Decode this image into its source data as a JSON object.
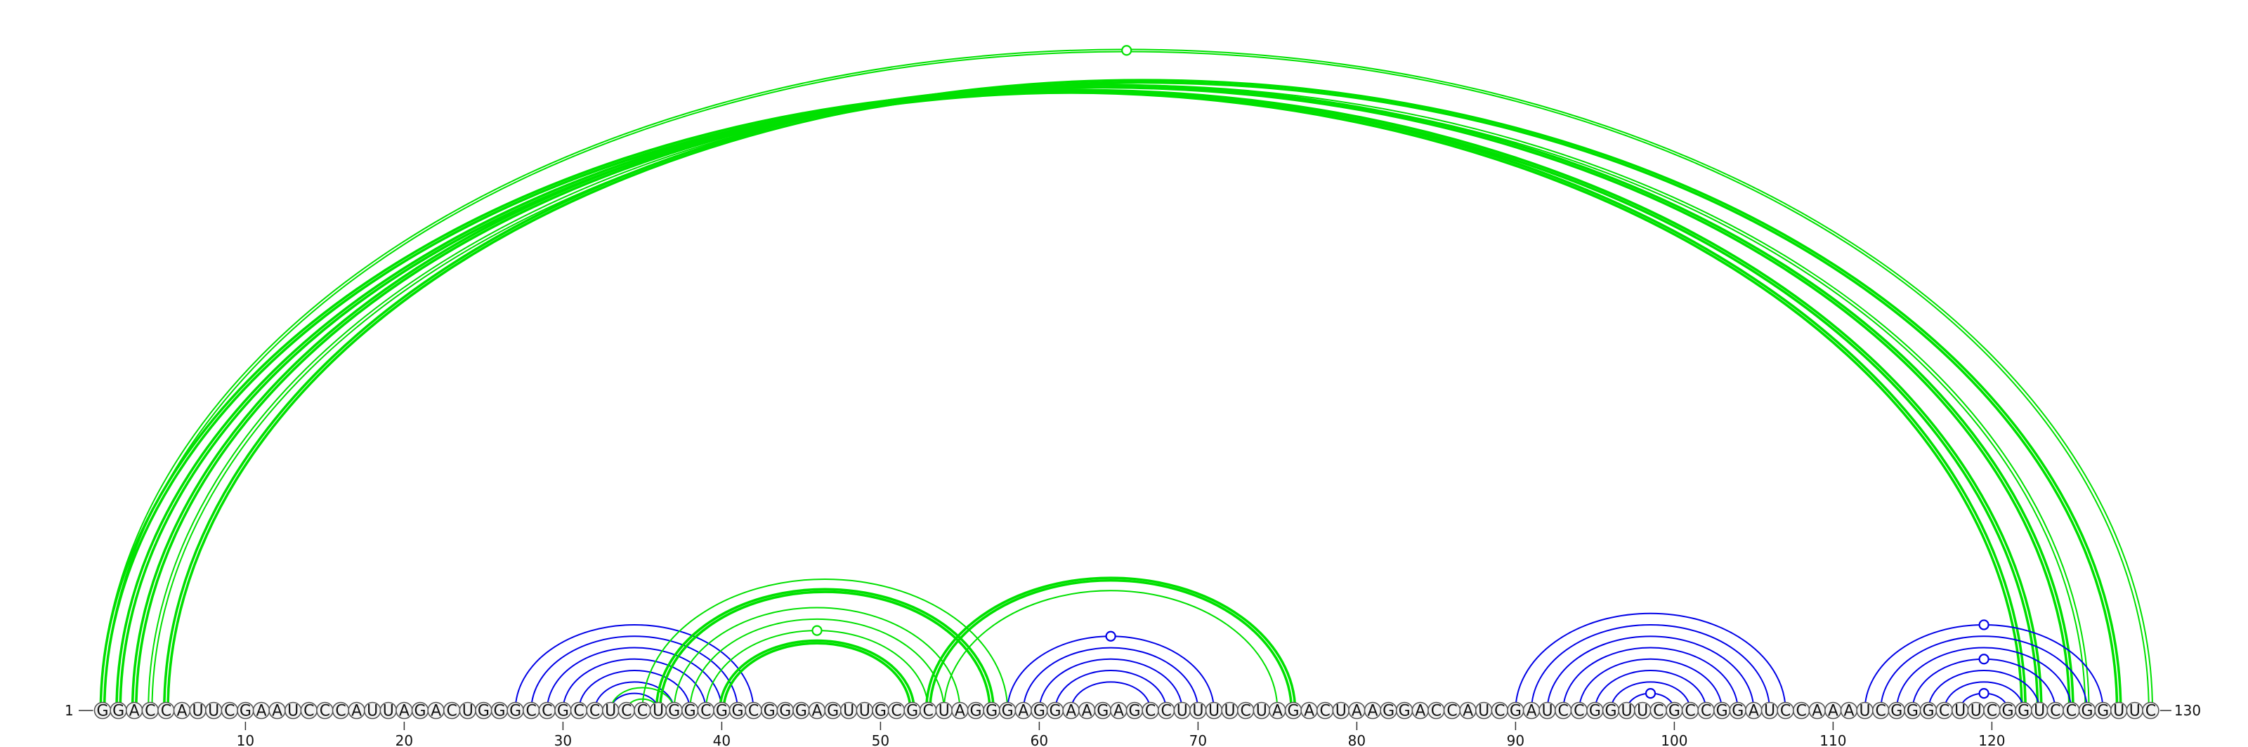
{
  "sequence": "GGACCAUUCGAAUCCCAUUAGACUGGGCCGCCUCCUGGCGGCGGGAGUUGCGCUAGGGAGGAAGAGCCUUUUCUAGACUAAGGACCAUCGAUCCGGUUCGCCGGAUCCAAAUCGGGCUUCGGUCCGGUUC",
  "start_label": "1",
  "end_label": "130",
  "ticks": [
    {
      "position": 10,
      "label": "10"
    },
    {
      "position": 20,
      "label": "20"
    },
    {
      "position": 30,
      "label": "30"
    },
    {
      "position": 40,
      "label": "40"
    },
    {
      "position": 50,
      "label": "50"
    },
    {
      "position": 60,
      "label": "60"
    },
    {
      "position": 70,
      "label": "70"
    },
    {
      "position": 80,
      "label": "80"
    },
    {
      "position": 90,
      "label": "90"
    },
    {
      "position": 100,
      "label": "100"
    },
    {
      "position": 110,
      "label": "110"
    },
    {
      "position": 120,
      "label": "120"
    }
  ],
  "colors": {
    "structure_a": "#00e000",
    "structure_b": "#0000e6"
  },
  "arcs": [
    {
      "color": "structure_a",
      "from": 1,
      "to": 122,
      "weight": "thick",
      "lines": 2
    },
    {
      "color": "structure_a",
      "from": 2,
      "to": 123,
      "weight": "thick",
      "lines": 2
    },
    {
      "color": "structure_a",
      "from": 3,
      "to": 125,
      "weight": "thick",
      "lines": 2
    },
    {
      "color": "structure_a",
      "from": 4,
      "to": 126,
      "weight": "thin",
      "lines": 2
    },
    {
      "color": "structure_a",
      "from": 5,
      "to": 128,
      "weight": "thick",
      "lines": 2
    },
    {
      "color": "structure_a",
      "from": 1,
      "to": 130,
      "weight": "thin",
      "lines": 2,
      "marker": true
    },
    {
      "color": "structure_b",
      "from": 27,
      "to": 42,
      "weight": "thin",
      "lines": 1
    },
    {
      "color": "structure_b",
      "from": 28,
      "to": 41,
      "weight": "thin",
      "lines": 1
    },
    {
      "color": "structure_b",
      "from": 29,
      "to": 40,
      "weight": "thin",
      "lines": 1
    },
    {
      "color": "structure_b",
      "from": 30,
      "to": 39,
      "weight": "thin",
      "lines": 1
    },
    {
      "color": "structure_b",
      "from": 31,
      "to": 38,
      "weight": "thin",
      "lines": 1
    },
    {
      "color": "structure_b",
      "from": 32,
      "to": 37,
      "weight": "thin",
      "lines": 1
    },
    {
      "color": "structure_b",
      "from": 33,
      "to": 36,
      "weight": "thin",
      "lines": 1
    },
    {
      "color": "structure_a",
      "from": 33,
      "to": 37,
      "weight": "thin",
      "lines": 1
    },
    {
      "color": "structure_a",
      "from": 34,
      "to": 36,
      "weight": "thin",
      "lines": 1
    },
    {
      "color": "structure_a",
      "from": 35,
      "to": 58,
      "weight": "thin",
      "lines": 1
    },
    {
      "color": "structure_a",
      "from": 36,
      "to": 57,
      "weight": "thick",
      "lines": 2
    },
    {
      "color": "structure_a",
      "from": 37,
      "to": 55,
      "weight": "thin",
      "lines": 1
    },
    {
      "color": "structure_a",
      "from": 38,
      "to": 54,
      "weight": "thin",
      "lines": 1
    },
    {
      "color": "structure_a",
      "from": 39,
      "to": 53,
      "weight": "thin",
      "lines": 1,
      "marker": true
    },
    {
      "color": "structure_a",
      "from": 40,
      "to": 52,
      "weight": "thick",
      "lines": 2
    },
    {
      "color": "structure_a",
      "from": 53,
      "to": 76,
      "weight": "thick",
      "lines": 2
    },
    {
      "color": "structure_a",
      "from": 54,
      "to": 75,
      "weight": "thin",
      "lines": 1
    },
    {
      "color": "structure_b",
      "from": 58,
      "to": 71,
      "weight": "thin",
      "lines": 1,
      "marker": true
    },
    {
      "color": "structure_b",
      "from": 59,
      "to": 70,
      "weight": "thin",
      "lines": 1
    },
    {
      "color": "structure_b",
      "from": 60,
      "to": 69,
      "weight": "thin",
      "lines": 1
    },
    {
      "color": "structure_b",
      "from": 61,
      "to": 68,
      "weight": "thin",
      "lines": 1
    },
    {
      "color": "structure_b",
      "from": 62,
      "to": 67,
      "weight": "thin",
      "lines": 1
    },
    {
      "color": "structure_b",
      "from": 90,
      "to": 107,
      "weight": "thin",
      "lines": 1
    },
    {
      "color": "structure_b",
      "from": 91,
      "to": 106,
      "weight": "thin",
      "lines": 1
    },
    {
      "color": "structure_b",
      "from": 92,
      "to": 105,
      "weight": "thin",
      "lines": 1
    },
    {
      "color": "structure_b",
      "from": 93,
      "to": 104,
      "weight": "thin",
      "lines": 1
    },
    {
      "color": "structure_b",
      "from": 94,
      "to": 103,
      "weight": "thin",
      "lines": 1
    },
    {
      "color": "structure_b",
      "from": 95,
      "to": 102,
      "weight": "thin",
      "lines": 1
    },
    {
      "color": "structure_b",
      "from": 96,
      "to": 101,
      "weight": "thin",
      "lines": 1
    },
    {
      "color": "structure_b",
      "from": 97,
      "to": 100,
      "weight": "thin",
      "lines": 1,
      "marker": true
    },
    {
      "color": "structure_b",
      "from": 112,
      "to": 127,
      "weight": "thin",
      "lines": 1,
      "marker": true
    },
    {
      "color": "structure_b",
      "from": 113,
      "to": 126,
      "weight": "thin",
      "lines": 1
    },
    {
      "color": "structure_b",
      "from": 114,
      "to": 125,
      "weight": "thin",
      "lines": 1
    },
    {
      "color": "structure_b",
      "from": 115,
      "to": 124,
      "weight": "thin",
      "lines": 1,
      "marker": true
    },
    {
      "color": "structure_b",
      "from": 116,
      "to": 123,
      "weight": "thin",
      "lines": 1
    },
    {
      "color": "structure_b",
      "from": 117,
      "to": 122,
      "weight": "thin",
      "lines": 1
    },
    {
      "color": "structure_b",
      "from": 118,
      "to": 121,
      "weight": "thin",
      "lines": 1,
      "marker": true
    }
  ]
}
